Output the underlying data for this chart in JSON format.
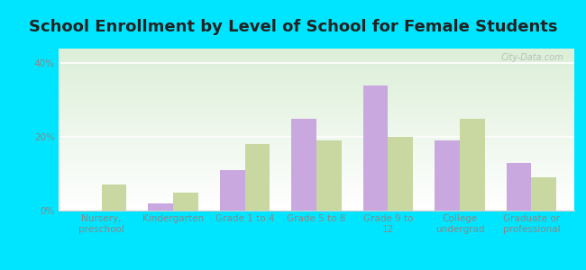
{
  "title": "School Enrollment by Level of School for Female Students",
  "categories": [
    "Nursery,\npreschool",
    "Kindergarten",
    "Grade 1 to 4",
    "Grade 5 to 8",
    "Grade 9 to\n12",
    "College\nundergrad",
    "Graduate or\nprofessional"
  ],
  "keeseville": [
    0.0,
    2.0,
    11.0,
    25.0,
    34.0,
    19.0,
    13.0
  ],
  "new_york": [
    7.0,
    5.0,
    18.0,
    19.0,
    20.0,
    25.0,
    9.0
  ],
  "keeseville_color": "#c9a8e0",
  "new_york_color": "#c8d8a0",
  "background_outer": "#00e5ff",
  "yticks": [
    0,
    20,
    40
  ],
  "ylim": [
    0,
    44
  ],
  "bar_width": 0.35,
  "title_fontsize": 13,
  "tick_fontsize": 7.5,
  "legend_fontsize": 9,
  "watermark_text": "City-Data.com"
}
